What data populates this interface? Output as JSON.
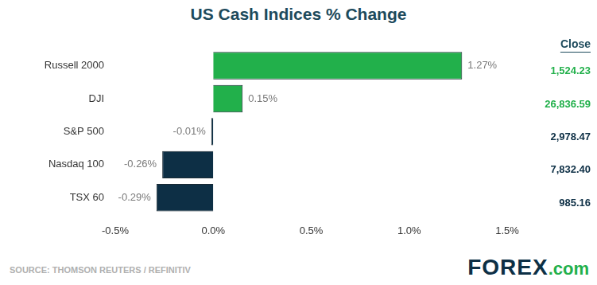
{
  "chart_data": {
    "type": "bar",
    "orientation": "horizontal",
    "title": "US Cash Indices % Change",
    "categories": [
      "Russell 2000",
      "DJI",
      "S&P 500",
      "Nasdaq 100",
      "TSX 60"
    ],
    "values": [
      1.27,
      0.15,
      -0.01,
      -0.26,
      -0.29
    ],
    "value_labels": [
      "1.27%",
      "0.15%",
      "-0.01%",
      "-0.26%",
      "-0.29%"
    ],
    "data_labels": true,
    "colors": [
      "#22b04b",
      "#22b04b",
      "#0d2f45",
      "#0d2f45",
      "#0d2f45"
    ],
    "xlim": [
      -0.5,
      1.5
    ],
    "xticks": [
      {
        "value": -0.5,
        "label": "-0.5%"
      },
      {
        "value": 0,
        "label": "0.0%"
      },
      {
        "value": 0.5,
        "label": "0.5%"
      },
      {
        "value": 1,
        "label": "1.0%"
      },
      {
        "value": 1.5,
        "label": "1.5%"
      }
    ],
    "grid": false,
    "close": {
      "label": "Close",
      "values": [
        1524.23,
        26836.59,
        2978.47,
        7832.4,
        985.16
      ],
      "value_labels": [
        "1,524.23",
        "26,836.59",
        "2,978.47",
        "7,832.40",
        "985.16"
      ]
    },
    "source": "SOURCE: THOMSON REUTERS / REFINITIV",
    "logo": "FOREX.com"
  }
}
